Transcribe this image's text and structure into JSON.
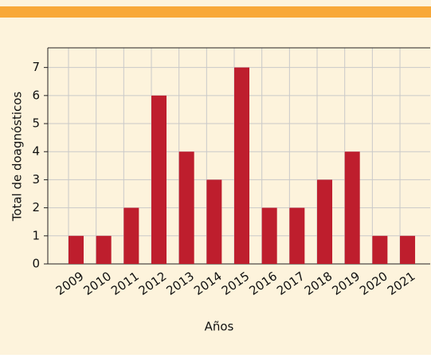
{
  "chart_data": {
    "type": "bar",
    "xlabel": "Años",
    "ylabel": "Total de doagnósticos",
    "categories": [
      "2009",
      "2010",
      "2011",
      "2012",
      "2013",
      "2014",
      "2015",
      "2016",
      "2017",
      "2018",
      "2019",
      "2020",
      "2021"
    ],
    "values": [
      1,
      1,
      2,
      6,
      4,
      3,
      7,
      2,
      2,
      3,
      4,
      1,
      1
    ],
    "color": "#be1e2d",
    "ylim": [
      0,
      7.7
    ],
    "yticks": [
      0,
      1,
      2,
      3,
      4,
      5,
      6,
      7
    ],
    "grid": true
  }
}
